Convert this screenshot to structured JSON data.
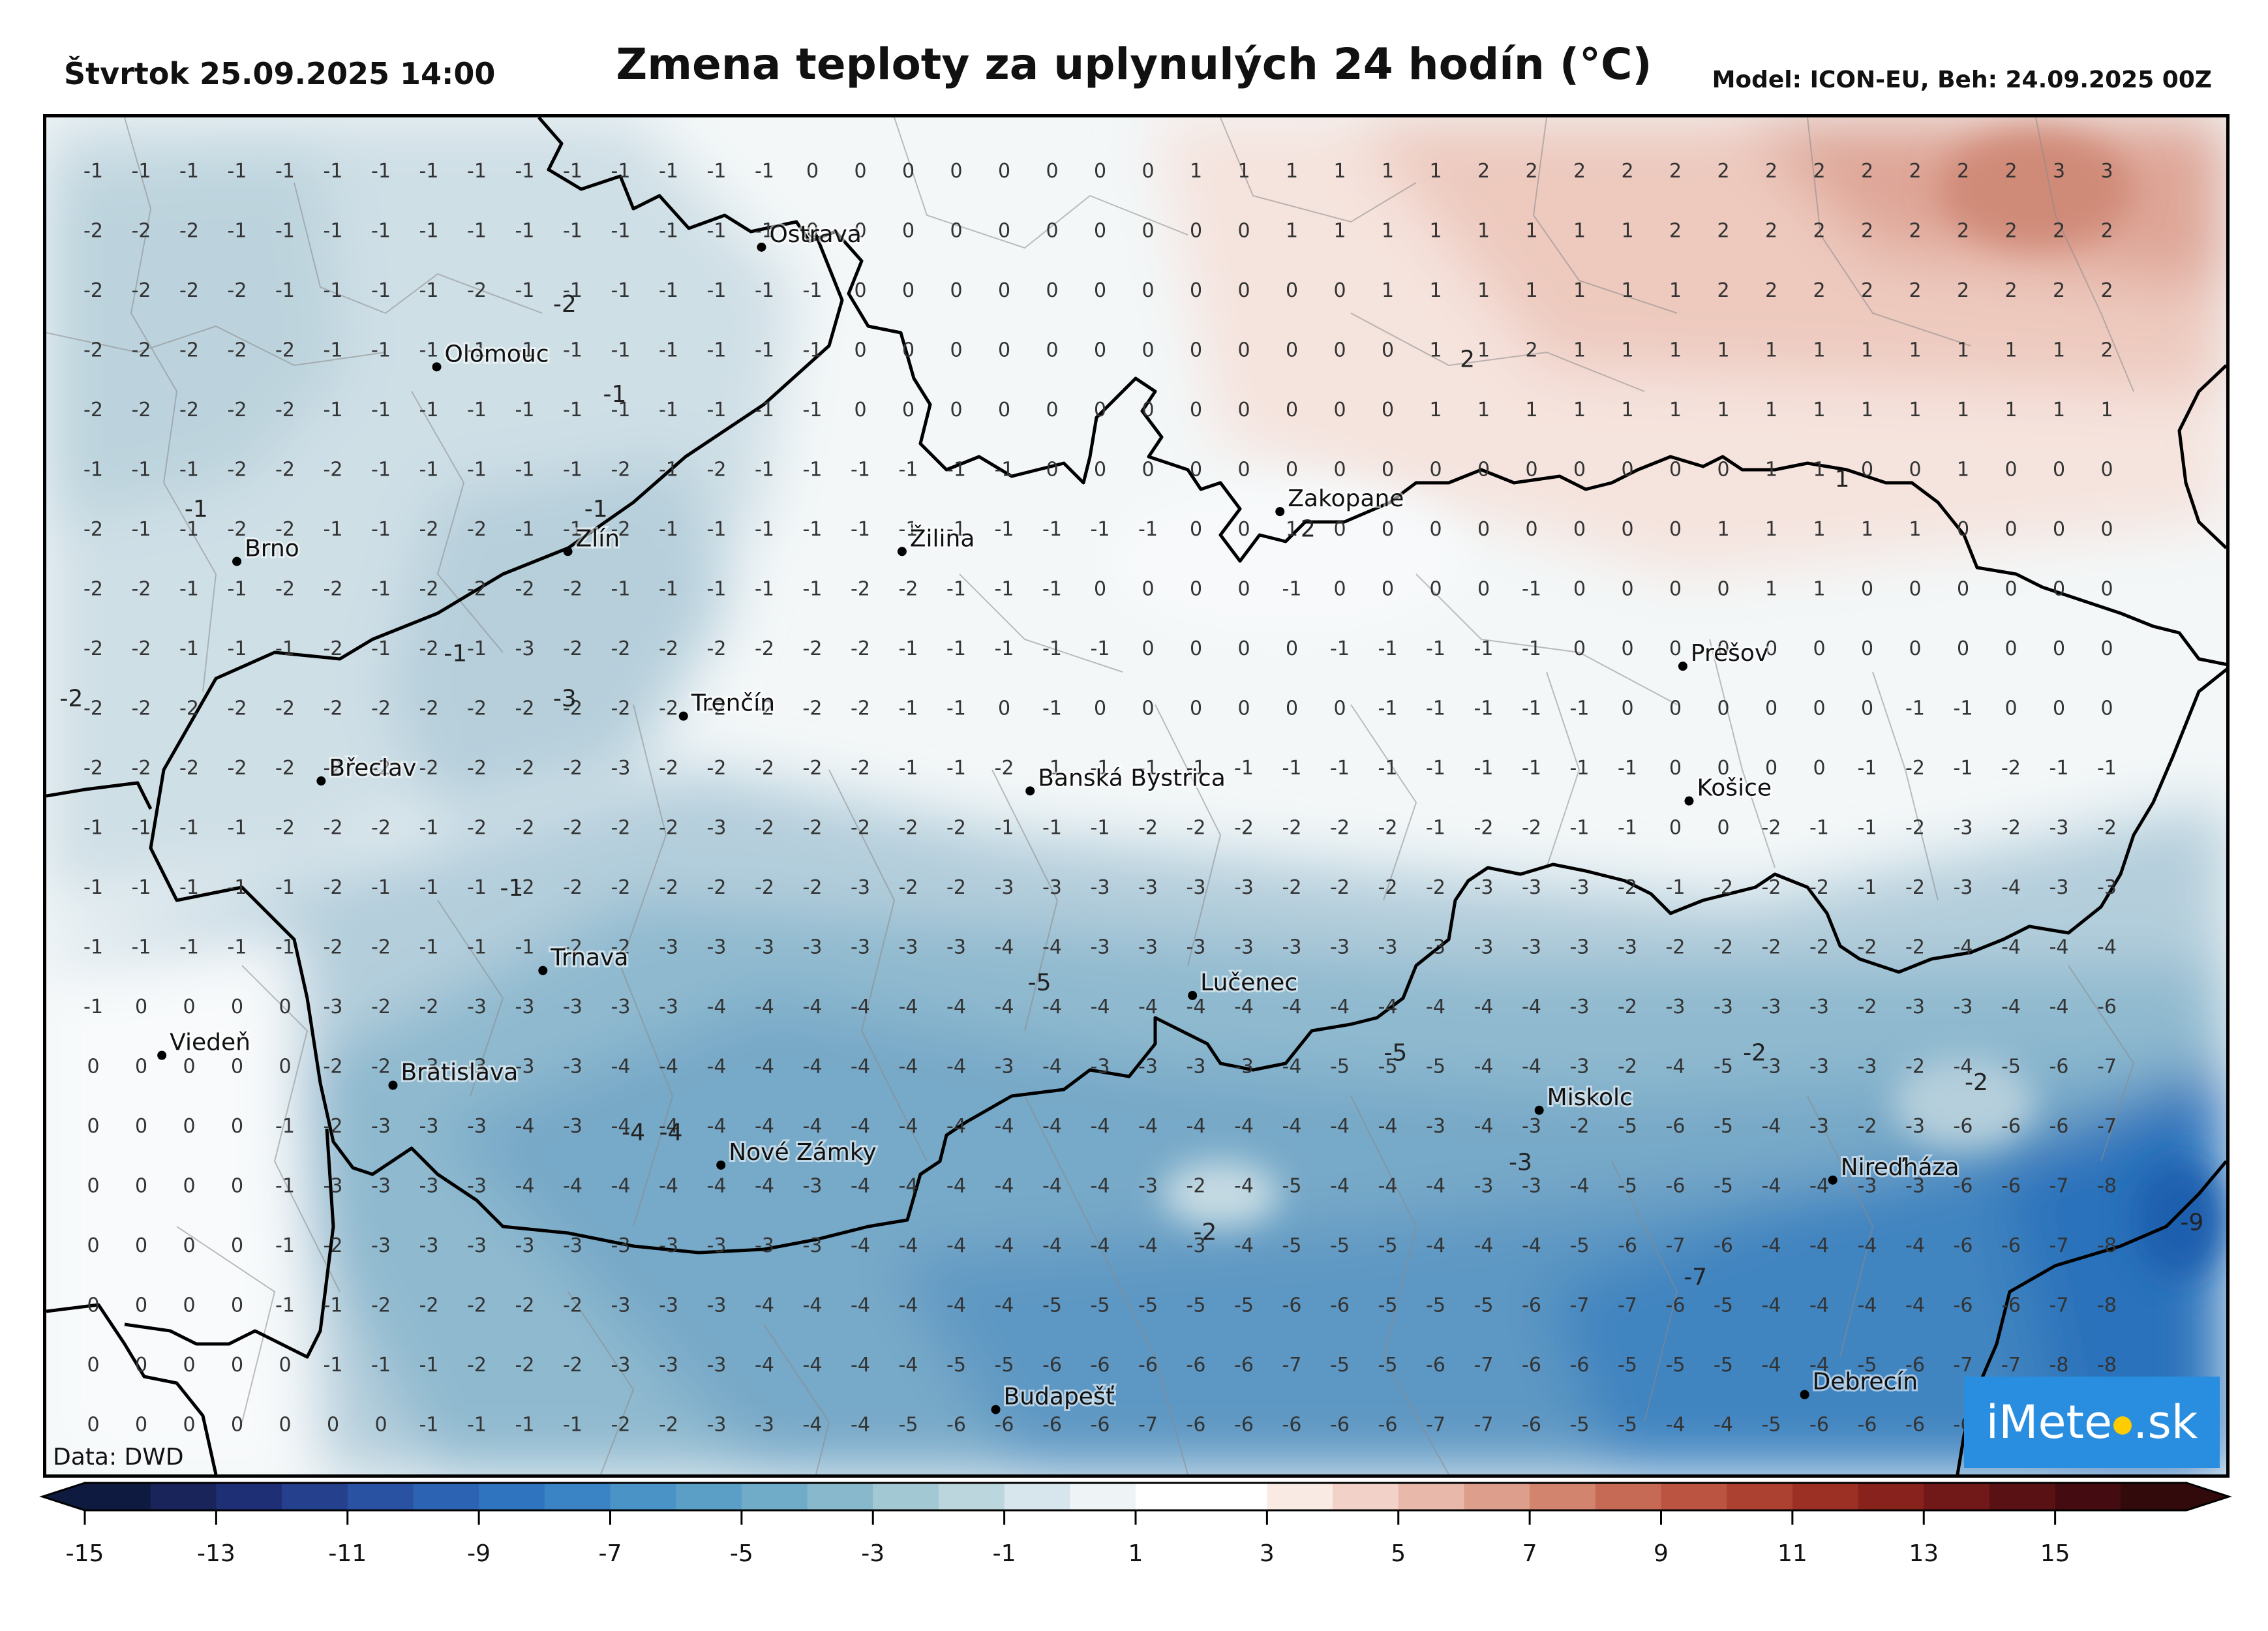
{
  "header": {
    "date": "Štvrtok 25.09.2025 14:00",
    "title": "Zmena teploty za uplynulých 24 hodín (°C)",
    "model": "Model: ICON-EU, Beh: 24.09.2025 00Z"
  },
  "credit": "Data: DWD",
  "logo": {
    "text_left": "iMete",
    "text_right": ".sk"
  },
  "cities": [
    {
      "name": "Ostrava",
      "lon": 18.29,
      "lat": 49.83
    },
    {
      "name": "Olomouc",
      "lon": 17.25,
      "lat": 49.59
    },
    {
      "name": "Brno",
      "lon": 16.61,
      "lat": 49.2
    },
    {
      "name": "Zlín",
      "lon": 17.67,
      "lat": 49.22
    },
    {
      "name": "Žilina",
      "lon": 18.74,
      "lat": 49.22
    },
    {
      "name": "Zakopane",
      "lon": 19.95,
      "lat": 49.3
    },
    {
      "name": "Prešov",
      "lon": 21.24,
      "lat": 48.99
    },
    {
      "name": "Trenčín",
      "lon": 18.04,
      "lat": 48.89
    },
    {
      "name": "Břeclav",
      "lon": 16.88,
      "lat": 48.76
    },
    {
      "name": "Banská Bystrica",
      "lon": 19.15,
      "lat": 48.74
    },
    {
      "name": "Košice",
      "lon": 21.26,
      "lat": 48.72
    },
    {
      "name": "Trnava",
      "lon": 17.59,
      "lat": 48.38
    },
    {
      "name": "Lučenec",
      "lon": 19.67,
      "lat": 48.33
    },
    {
      "name": "Viedeň",
      "lon": 16.37,
      "lat": 48.21
    },
    {
      "name": "Bratislava",
      "lon": 17.11,
      "lat": 48.15
    },
    {
      "name": "Miskolc",
      "lon": 20.78,
      "lat": 48.1
    },
    {
      "name": "Nové Zámky",
      "lon": 18.16,
      "lat": 47.99
    },
    {
      "name": "Nireďháza",
      "lon": 21.72,
      "lat": 47.96
    },
    {
      "name": "Budapešť",
      "lon": 19.04,
      "lat": 47.5
    },
    {
      "name": "Debrecín",
      "lon": 21.63,
      "lat": 47.53
    }
  ],
  "grid": [
    "-1 -1 -1 -1 -1 -1 -1 -1 -1 -1 -1 -1 -1 -1 -1 0 0 0 0 0 0 0 0 1 1 1 1 1 1 2 2 2 2 2 2 2 2 2 2 2 2 3 3",
    "-2 -2 -2 -1 -1 -1 -1 -1 -1 -1 -1 -1 -1 -1 -1 0 0 0 0 0 0 0 0 0 0 1 1 1 1 1 1 1 1 2 2 2 2 2 2 2 2 2 2",
    "-2 -2 -2 -2 -1 -1 -1 -1 -2 -1 -1 -1 -1 -1 -1 -1 0 0 0 0 0 0 0 0 0 0 0 1 1 1 1 1 1 1 2 2 2 2 2 2 2 2 2",
    "-2 -2 -2 -2 -2 -1 -1 -1 -1 -1 -1 -1 -1 -1 -1 -1 0 0 0 0 0 0 0 0 0 0 0 0 1 1 2 1 1 1 1 1 1 1 1 1 1 1 2",
    "-2 -2 -2 -2 -2 -1 -1 -1 -1 -1 -1 -1 -1 -1 -1 -1 0 0 0 0 0 0 0 0 0 0 0 0 1 1 1 1 1 1 1 1 1 1 1 1 1 1 1",
    "-1 -1 -1 -2 -2 -2 -1 -1 -1 -1 -1 -2 -1 -2 -1 -1 -1 -1 -1 -1 0 0 0 0 0 0 0 0 0 0 0 0 0 0 0 1 1 0 0 1 0 0 0",
    "-2 -1 -1 -2 -2 -1 -1 -2 -2 -1 -1 -2 -1 -1 -1 -1 -1 -1 -1 -1 -1 -1 -1 0 0 1 0 0 0 0 0 0 0 0 1 1 1 1 1 0 0 0 0",
    "-2 -2 -1 -1 -2 -2 -1 -2 -2 -2 -2 -1 -1 -1 -1 -1 -2 -2 -1 -1 -1 0 0 0 0 -1 0 0 0 0 -1 0 0 0 0 1 1 0 0 0 0 0 0",
    "-2 -2 -1 -1 -1 -2 -1 -2 -1 -3 -2 -2 -2 -2 -2 -2 -2 -1 -1 -1 -1 -1 0 0 0 0 -1 -1 -1 -1 -1 0 0 0 0 0 0 0 0 0 0 0 0",
    "-2 -2 -2 -2 -2 -2 -2 -2 -2 -2 -2 -2 -2 -2 -2 -2 -2 -1 -1 0 -1 0 0 0 0 0 0 -1 -1 -1 -1 -1 0 0 0 0 0 0 -1 -1 0 0 0",
    "-2 -2 -2 -2 -2 -2 -2 -2 -2 -2 -2 -3 -2 -2 -2 -2 -2 -1 -1 -2 -1 -1 -1 -1 -1 -1 -1 -1 -1 -1 -1 -1 -1 0 0 0 0 -1 -2 -1 -2 -1 -1",
    "-1 -1 -1 -1 -2 -2 -2 -1 -2 -2 -2 -2 -2 -3 -2 -2 -2 -2 -2 -1 -1 -1 -2 -2 -2 -2 -2 -2 -1 -2 -2 -1 -1 0 0 -2 -1 -1 -2 -3 -2 -3 -2",
    "-1 -1 -1 -1 -1 -2 -1 -1 -1 -2 -2 -2 -2 -2 -2 -2 -3 -2 -2 -3 -3 -3 -3 -3 -3 -2 -2 -2 -2 -3 -3 -3 -2 -1 -2 -2 -2 -1 -2 -3 -4 -3 -3",
    "-1 -1 -1 -1 -1 -2 -2 -1 -1 -1 -2 -2 -3 -3 -3 -3 -3 -3 -3 -4 -4 -3 -3 -3 -3 -3 -3 -3 -3 -3 -3 -3 -3 -2 -2 -2 -2 -2 -2 -4 -4 -4 -4",
    "-1 0 0 0 0 -3 -2 -2 -3 -3 -3 -3 -3 -4 -4 -4 -4 -4 -4 -4 -4 -4 -4 -4 -4 -4 -4 -4 -4 -4 -4 -3 -2 -3 -3 -3 -3 -2 -3 -3 -4 -4 -6",
    "0 0 0 0 0 -2 -2 -3 -3 -3 -3 -4 -4 -4 -4 -4 -4 -4 -4 -3 -4 -3 -3 -3 -3 -4 -5 -5 -5 -4 -4 -3 -2 -4 -5 -3 -3 -3 -2 -4 -5 -6 -7",
    "0 0 0 0 -1 -2 -3 -3 -3 -4 -3 -4 -4 -4 -4 -4 -4 -4 -4 -4 -4 -4 -4 -4 -4 -4 -4 -4 -3 -4 -3 -2 -5 -6 -5 -4 -3 -2 -3 -6 -6 -6 -7",
    "0 0 0 0 -1 -3 -3 -3 -3 -4 -4 -4 -4 -4 -4 -3 -4 -4 -4 -4 -4 -4 -3 -2 -4 -5 -4 -4 -4 -3 -3 -4 -5 -6 -5 -4 -4 -3 -3 -6 -6 -7 -8",
    "0 0 0 0 -1 -2 -3 -3 -3 -3 -3 -3 -3 -3 -3 -3 -4 -4 -4 -4 -4 -4 -4 -3 -4 -5 -5 -5 -4 -4 -4 -5 -6 -7 -6 -4 -4 -4 -4 -6 -6 -7 -8",
    "0 0 0 0 -1 -1 -2 -2 -2 -2 -2 -3 -3 -3 -4 -4 -4 -4 -4 -4 -5 -5 -5 -5 -5 -6 -6 -5 -5 -5 -6 -7 -7 -6 -5 -4 -4 -4 -4 -6 -6 -7 -8",
    "0 0 0 0 0 -1 -1 -1 -2 -2 -2 -3 -3 -3 -4 -4 -4 -4 -5 -5 -6 -6 -6 -6 -6 -7 -5 -5 -6 -7 -6 -6 -5 -5 -5 -4 -4 -5 -6 -7 -7 -8 -8",
    "0 0 0 0 0 0 0 -1 -1 -1 -1 -2 -2 -3 -3 -4 -4 -5 -6 -6 -6 -6 -7 -6 -6 -6 -6 -6 -7 -7 -6 -5 -5 -4 -4 -5 -6 -6 -6 -6 -7 -7 -8"
  ],
  "big_labels": [
    {
      "text": "-2",
      "lon": 17.66,
      "lat": 49.7
    },
    {
      "text": "-1",
      "lon": 17.82,
      "lat": 49.52
    },
    {
      "text": "-1",
      "lon": 16.48,
      "lat": 49.29
    },
    {
      "text": "-1",
      "lon": 17.76,
      "lat": 49.29
    },
    {
      "text": "-1",
      "lon": 17.31,
      "lat": 49.0
    },
    {
      "text": "-3",
      "lon": 17.66,
      "lat": 48.91
    },
    {
      "text": "-2",
      "lon": 16.08,
      "lat": 48.91
    },
    {
      "text": "-1",
      "lon": 17.49,
      "lat": 48.53
    },
    {
      "text": "-4",
      "lon": 17.88,
      "lat": 48.04
    },
    {
      "text": "-4",
      "lon": 18.0,
      "lat": 48.04
    },
    {
      "text": "-5",
      "lon": 19.18,
      "lat": 48.34
    },
    {
      "text": "-5",
      "lon": 20.32,
      "lat": 48.2
    },
    {
      "text": "-2",
      "lon": 19.71,
      "lat": 47.84
    },
    {
      "text": "-3",
      "lon": 20.72,
      "lat": 47.98
    },
    {
      "text": "-2",
      "lon": 21.47,
      "lat": 48.2
    },
    {
      "text": "-2",
      "lon": 22.18,
      "lat": 48.14
    },
    {
      "text": "-7",
      "lon": 21.28,
      "lat": 47.75
    },
    {
      "text": "-9",
      "lon": 22.87,
      "lat": 47.86
    },
    {
      "text": "2",
      "lon": 20.55,
      "lat": 49.59
    },
    {
      "text": "1",
      "lon": 21.75,
      "lat": 49.35
    },
    {
      "text": "2",
      "lon": 20.04,
      "lat": 49.25
    }
  ],
  "colorbar": {
    "ticks": [
      "-15",
      "-13",
      "-11",
      "-9",
      "-7",
      "-5",
      "-3",
      "-1",
      "1",
      "3",
      "5",
      "7",
      "9",
      "11",
      "13",
      "15"
    ],
    "colors": [
      "#0f1a40",
      "#18245a",
      "#1f2f75",
      "#25408c",
      "#2a52a3",
      "#2c63b3",
      "#2f74bf",
      "#3a84c5",
      "#4a93c6",
      "#5b9fc6",
      "#70abc8",
      "#88b8cc",
      "#a2c8d4",
      "#bcd6de",
      "#d6e6ec",
      "#eef4f6",
      "#ffffff",
      "#ffffff",
      "#faeae4",
      "#f2d2c8",
      "#e8b9aa",
      "#dd9e8c",
      "#d2846f",
      "#c76a55",
      "#bb5440",
      "#ad4131",
      "#9c3024",
      "#87221c",
      "#711818",
      "#5a1114",
      "#440c10",
      "#320a0c"
    ]
  },
  "colors": {
    "warm_core": "#d99988",
    "warm_mid": "#ecc8bc",
    "warm_light": "#f7e6e0",
    "cool_light": "#dfe9ed",
    "cool_m1": "#c8dce4",
    "cool_m2": "#b2cfdc",
    "cool_m3": "#98bfd2",
    "cool_m4": "#7aacc8",
    "cool_m5": "#5b97c2",
    "cool_m6": "#3f84c0",
    "cool_m7": "#2a72bb",
    "cool_m8": "#1f5fae",
    "border": "#000000",
    "district": "#888888"
  }
}
